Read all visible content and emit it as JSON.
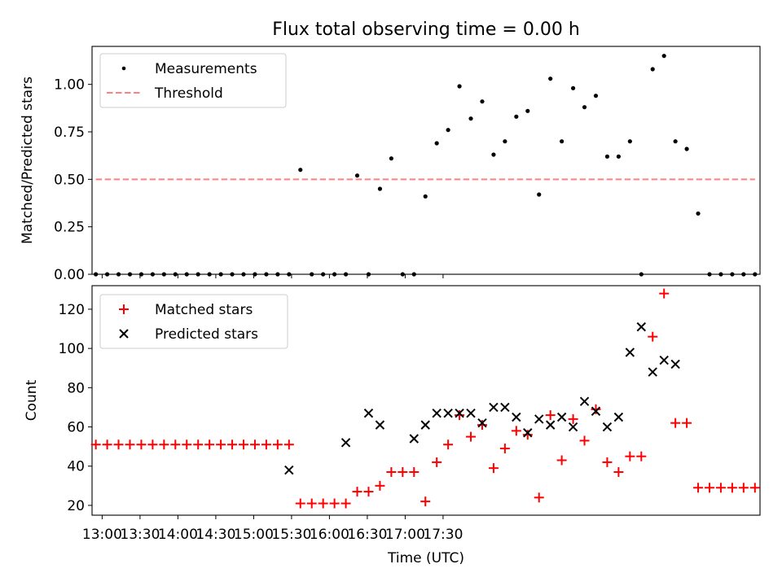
{
  "chart_data": [
    {
      "type": "scatter",
      "title": "Flux total observing time = 0.00 h",
      "xlabel": "",
      "ylabel": "Matched/Predicted stars",
      "ylim": [
        0,
        1.2
      ],
      "yticks": [
        0,
        0.25,
        0.5,
        0.75,
        1.0
      ],
      "ytick_labels": [
        "0.00",
        "0.25",
        "0.50",
        "0.75",
        "1.00"
      ],
      "xlim": [
        772,
        1301
      ],
      "legend_position": "top-left",
      "series": [
        {
          "name": "Measurements",
          "marker": "dot",
          "color": "#000000",
          "x": [
            775,
            784,
            793,
            802,
            811,
            820,
            829,
            838,
            847,
            856,
            865,
            874,
            883,
            892,
            901,
            910,
            919,
            928,
            937,
            946,
            955,
            964,
            973,
            982,
            991,
            1000,
            1009,
            1018,
            1027,
            1036,
            1045,
            1054,
            1063,
            1072,
            1081,
            1090,
            1099,
            1108,
            1117,
            1126,
            1135,
            1144,
            1153,
            1162,
            1171,
            1180,
            1189,
            1198,
            1207,
            1216,
            1225,
            1234,
            1243,
            1252,
            1261,
            1270,
            1279,
            1288,
            1297
          ],
          "y": [
            0,
            0,
            0,
            0,
            0,
            0,
            0,
            0,
            0,
            0,
            0,
            0,
            0,
            0,
            0,
            0,
            0,
            0,
            0.55,
            0,
            0,
            0,
            0,
            0.52,
            0,
            0.45,
            0.61,
            0,
            0,
            0.41,
            0.69,
            0.76,
            0.99,
            0.82,
            0.91,
            0.63,
            0.7,
            0.83,
            0.86,
            0.42,
            1.03,
            0.7,
            0.98,
            0.88,
            0.94,
            0.62,
            0.62,
            0.7,
            0,
            1.08,
            1.15,
            0.7,
            0.66,
            0.32,
            0,
            0,
            0,
            0,
            0
          ]
        },
        {
          "name": "Threshold",
          "style": "dashed",
          "color": "#ff8080",
          "x": [
            775,
            1297
          ],
          "y": [
            0.5,
            0.5
          ]
        }
      ]
    },
    {
      "type": "scatter",
      "title": "",
      "xlabel": "Time (UTC)",
      "ylabel": "Count",
      "ylim": [
        15,
        132
      ],
      "yticks": [
        20,
        40,
        60,
        80,
        100,
        120
      ],
      "ytick_labels": [
        "20",
        "40",
        "60",
        "80",
        "100",
        "120"
      ],
      "xlim": [
        772,
        1301
      ],
      "xticks": [
        780,
        810,
        840,
        870,
        900,
        930,
        960,
        990,
        1020,
        1050
      ],
      "xtick_labels": [
        "13:00",
        "13:30",
        "14:00",
        "14:30",
        "15:00",
        "15:30",
        "16:00",
        "16:30",
        "17:00",
        "17:30"
      ],
      "legend_position": "top-left",
      "series": [
        {
          "name": "Matched stars",
          "marker": "plus",
          "color": "#ff0000",
          "x": [
            775,
            784,
            793,
            802,
            811,
            820,
            829,
            838,
            847,
            856,
            865,
            874,
            883,
            892,
            901,
            910,
            919,
            928,
            937,
            946,
            955,
            964,
            973,
            982,
            991,
            1000,
            1009,
            1018,
            1027,
            1036,
            1045,
            1054,
            1063,
            1072,
            1081,
            1090,
            1099,
            1108,
            1117,
            1126,
            1135,
            1144,
            1153,
            1162,
            1171,
            1180,
            1189,
            1198,
            1207,
            1216,
            1225,
            1234,
            1243,
            1252,
            1261,
            1270,
            1279,
            1288,
            1297
          ],
          "y": [
            51,
            51,
            51,
            51,
            51,
            51,
            51,
            51,
            51,
            51,
            51,
            51,
            51,
            51,
            51,
            51,
            51,
            51,
            21,
            21,
            21,
            21,
            21,
            27,
            27,
            30,
            37,
            37,
            37,
            22,
            42,
            51,
            66,
            55,
            61,
            39,
            49,
            58,
            56,
            24,
            66,
            43,
            64,
            53,
            69,
            42,
            37,
            45,
            45,
            106,
            128,
            62,
            62,
            29,
            29,
            29,
            29,
            29,
            29
          ]
        },
        {
          "name": "Predicted stars",
          "marker": "x",
          "color": "#000000",
          "x": [
            928,
            973,
            991,
            1000,
            1027,
            1036,
            1045,
            1054,
            1063,
            1072,
            1081,
            1090,
            1099,
            1108,
            1117,
            1126,
            1135,
            1144,
            1153,
            1162,
            1171,
            1180,
            1189,
            1198,
            1207,
            1216,
            1225,
            1234
          ],
          "y": [
            38,
            52,
            67,
            61,
            54,
            61,
            67,
            67,
            67,
            67,
            62,
            70,
            70,
            65,
            57,
            64,
            61,
            65,
            60,
            73,
            68,
            60,
            65,
            98,
            111,
            88,
            94,
            92
          ]
        }
      ]
    }
  ]
}
